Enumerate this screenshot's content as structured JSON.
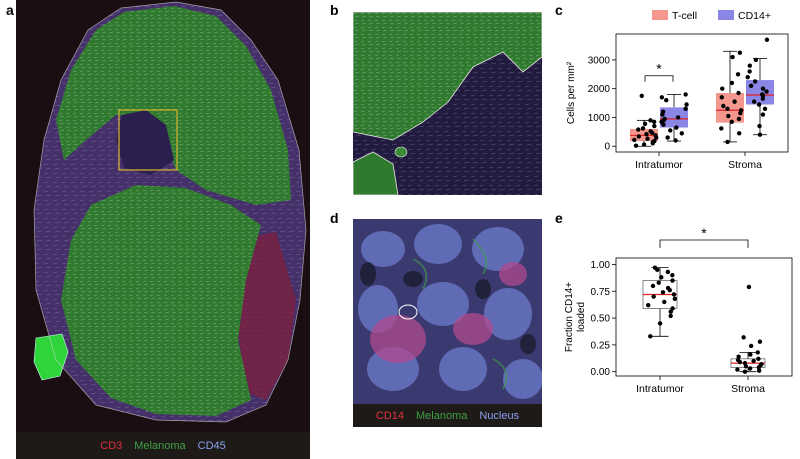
{
  "panels": {
    "a": {
      "letter": "a",
      "legend": [
        {
          "label": "CD3",
          "color": "#e0323c"
        },
        {
          "label": "Melanoma",
          "color": "#3fa046"
        },
        {
          "label": "CD45",
          "color": "#8aa0f0"
        }
      ]
    },
    "b": {
      "letter": "b"
    },
    "c": {
      "letter": "c"
    },
    "d": {
      "letter": "d",
      "legend": [
        {
          "label": "CD14",
          "color": "#e0323c"
        },
        {
          "label": "Melanoma",
          "color": "#3fa046"
        },
        {
          "label": "Nucleus",
          "color": "#8aa0f0"
        }
      ]
    },
    "e": {
      "letter": "e"
    }
  },
  "chart_data": [
    {
      "type": "box",
      "panel": "c",
      "categories": [
        "Intratumor",
        "Stroma"
      ],
      "ylabel": "Cells per mm²",
      "ylim": [
        -200,
        3900
      ],
      "yticks": [
        0,
        1000,
        2000,
        3000
      ],
      "legend": {
        "position": "top",
        "entries": [
          {
            "name": "T-cell",
            "color": "#f4978e"
          },
          {
            "name": "CD14+",
            "color": "#8a86e6"
          }
        ]
      },
      "significance": [
        {
          "category": "Intratumor",
          "label": "*"
        }
      ],
      "series": [
        {
          "name": "T-cell",
          "color": "#f4978e",
          "boxes": [
            {
              "q1": 180,
              "median": 380,
              "q3": 600,
              "whisker_low": 0,
              "whisker_high": 900
            },
            {
              "q1": 820,
              "median": 1250,
              "q3": 1850,
              "whisker_low": 150,
              "whisker_high": 3300
            }
          ],
          "points": [
            [
              20,
              60,
              100,
              150,
              180,
              220,
              260,
              300,
              340,
              380,
              420,
              470,
              520,
              580,
              620,
              700,
              780,
              850,
              900,
              1750
            ],
            [
              150,
              450,
              620,
              850,
              950,
              1050,
              1150,
              1250,
              1300,
              1400,
              1550,
              1700,
              1850,
              2000,
              2200,
              2500,
              3100,
              3250
            ]
          ]
        },
        {
          "name": "CD14+",
          "color": "#8a86e6",
          "boxes": [
            {
              "q1": 650,
              "median": 950,
              "q3": 1350,
              "whisker_low": 180,
              "whisker_high": 1800
            },
            {
              "q1": 1450,
              "median": 1780,
              "q3": 2300,
              "whisker_low": 400,
              "whisker_high": 3050
            }
          ],
          "points": [
            [
              200,
              300,
              450,
              550,
              650,
              750,
              850,
              900,
              950,
              1000,
              1100,
              1200,
              1300,
              1450,
              1600,
              1700,
              1800
            ],
            [
              400,
              700,
              1100,
              1300,
              1450,
              1550,
              1650,
              1750,
              1800,
              1900,
              2000,
              2100,
              2250,
              2400,
              2600,
              2800,
              3000,
              3700
            ]
          ]
        }
      ]
    },
    {
      "type": "box",
      "panel": "e",
      "categories": [
        "Intratumor",
        "Stroma"
      ],
      "ylabel": "Fraction CD14+ loaded",
      "ylim": [
        -0.04,
        1.06
      ],
      "yticks": [
        0.0,
        0.25,
        0.5,
        0.75,
        1.0
      ],
      "ytick_labels": [
        "0.00",
        "0.25",
        "0.50",
        "0.75",
        "1.00"
      ],
      "significance": [
        {
          "between": [
            "Intratumor",
            "Stroma"
          ],
          "label": "*"
        }
      ],
      "series": [
        {
          "name": "",
          "color": "#ffffff",
          "boxes": [
            {
              "q1": 0.59,
              "median": 0.72,
              "q3": 0.85,
              "whisker_low": 0.33,
              "whisker_high": 0.97
            },
            {
              "q1": 0.04,
              "median": 0.08,
              "q3": 0.12,
              "whisker_low": 0.0,
              "whisker_high": 0.18
            }
          ],
          "points": [
            [
              0.33,
              0.45,
              0.52,
              0.56,
              0.59,
              0.62,
              0.65,
              0.68,
              0.7,
              0.72,
              0.74,
              0.76,
              0.78,
              0.8,
              0.83,
              0.85,
              0.88,
              0.9,
              0.93,
              0.95,
              0.97
            ],
            [
              0.0,
              0.01,
              0.02,
              0.03,
              0.04,
              0.05,
              0.06,
              0.07,
              0.08,
              0.09,
              0.1,
              0.11,
              0.12,
              0.14,
              0.16,
              0.18,
              0.24,
              0.28,
              0.32,
              0.79
            ]
          ]
        }
      ]
    }
  ]
}
